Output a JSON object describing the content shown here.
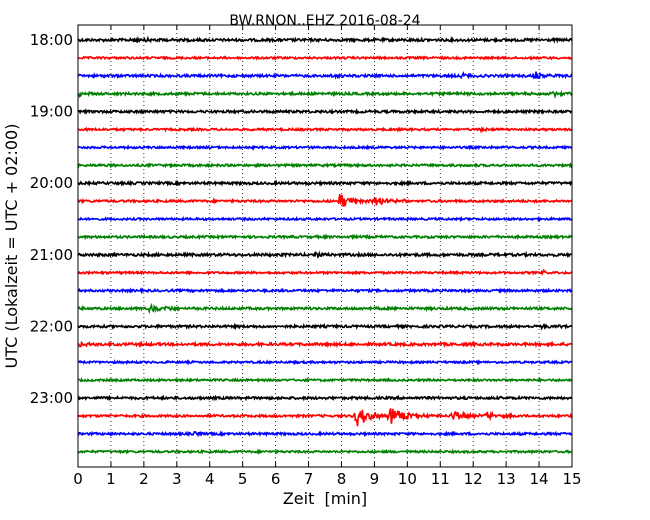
{
  "chart_data": {
    "type": "line",
    "title": "BW.RNON..EHZ 2016-08-24",
    "xlabel": "Zeit  [min]",
    "ylabel": "UTC (Lokalzeit = UTC + 02:00)",
    "xlim": [
      0,
      15
    ],
    "x_ticks": [
      "0",
      "1",
      "2",
      "3",
      "4",
      "5",
      "6",
      "7",
      "8",
      "9",
      "10",
      "11",
      "12",
      "13",
      "14",
      "15"
    ],
    "y_tick_labels": [
      "18:00",
      "19:00",
      "20:00",
      "21:00",
      "22:00",
      "23:00"
    ],
    "grid_x": "dotted",
    "trace_colors": [
      "#000000",
      "#ff0000",
      "#0000ff",
      "#008000"
    ],
    "rows": [
      {
        "label": "18:00",
        "color": "#000000",
        "noise": 1.3,
        "events": [
          {
            "t": 1.6,
            "amp": 3,
            "dur": 1.4
          }
        ]
      },
      {
        "label": "18:15",
        "color": "#ff0000",
        "noise": 1.0,
        "events": []
      },
      {
        "label": "18:30",
        "color": "#0000ff",
        "noise": 1.2,
        "events": [
          {
            "t": 7.5,
            "amp": 2,
            "dur": 1.0
          },
          {
            "t": 11.6,
            "amp": 4,
            "dur": 0.7
          },
          {
            "t": 13.8,
            "amp": 5,
            "dur": 1.0
          }
        ]
      },
      {
        "label": "18:45",
        "color": "#008000",
        "noise": 1.2,
        "events": [
          {
            "t": 0.0,
            "amp": 3,
            "dur": 0.6
          },
          {
            "t": 14.4,
            "amp": 3,
            "dur": 0.6
          }
        ]
      },
      {
        "label": "19:00",
        "color": "#000000",
        "noise": 1.2,
        "events": []
      },
      {
        "label": "19:15",
        "color": "#ff0000",
        "noise": 1.0,
        "events": [
          {
            "t": 12.2,
            "amp": 2,
            "dur": 0.6
          }
        ]
      },
      {
        "label": "19:30",
        "color": "#0000ff",
        "noise": 1.0,
        "events": []
      },
      {
        "label": "19:45",
        "color": "#008000",
        "noise": 1.1,
        "events": []
      },
      {
        "label": "20:00",
        "color": "#000000",
        "noise": 1.2,
        "events": []
      },
      {
        "label": "20:15",
        "color": "#ff0000",
        "noise": 1.1,
        "events": [
          {
            "t": 7.9,
            "amp": 11,
            "dur": 1.0
          },
          {
            "t": 8.9,
            "amp": 5,
            "dur": 1.5
          }
        ]
      },
      {
        "label": "20:30",
        "color": "#0000ff",
        "noise": 1.0,
        "events": []
      },
      {
        "label": "20:45",
        "color": "#008000",
        "noise": 1.1,
        "events": []
      },
      {
        "label": "21:00",
        "color": "#000000",
        "noise": 1.3,
        "events": [
          {
            "t": 7.2,
            "amp": 2,
            "dur": 0.6
          }
        ]
      },
      {
        "label": "21:15",
        "color": "#ff0000",
        "noise": 1.0,
        "events": [
          {
            "t": 14.1,
            "amp": 2,
            "dur": 0.5
          }
        ]
      },
      {
        "label": "21:30",
        "color": "#0000ff",
        "noise": 1.1,
        "events": []
      },
      {
        "label": "21:45",
        "color": "#008000",
        "noise": 1.2,
        "events": [
          {
            "t": 2.0,
            "amp": 5,
            "dur": 1.6
          }
        ]
      },
      {
        "label": "22:00",
        "color": "#000000",
        "noise": 1.2,
        "events": [
          {
            "t": 14.0,
            "amp": 3,
            "dur": 1.0
          }
        ]
      },
      {
        "label": "22:15",
        "color": "#ff0000",
        "noise": 1.3,
        "events": [
          {
            "t": 0.0,
            "amp": 3,
            "dur": 0.8
          }
        ]
      },
      {
        "label": "22:30",
        "color": "#0000ff",
        "noise": 1.0,
        "events": []
      },
      {
        "label": "22:45",
        "color": "#008000",
        "noise": 1.0,
        "events": []
      },
      {
        "label": "23:00",
        "color": "#000000",
        "noise": 1.2,
        "events": []
      },
      {
        "label": "23:15",
        "color": "#ff0000",
        "noise": 1.1,
        "events": [
          {
            "t": 8.4,
            "amp": 13,
            "dur": 1.2
          },
          {
            "t": 9.4,
            "amp": 11,
            "dur": 1.4
          },
          {
            "t": 11.3,
            "amp": 7,
            "dur": 1.1
          },
          {
            "t": 12.3,
            "amp": 4,
            "dur": 1.4
          }
        ]
      },
      {
        "label": "23:30",
        "color": "#0000ff",
        "noise": 1.1,
        "events": [
          {
            "t": 3.5,
            "amp": 2,
            "dur": 0.4
          }
        ]
      },
      {
        "label": "23:45",
        "color": "#008000",
        "noise": 1.0,
        "events": []
      }
    ]
  }
}
